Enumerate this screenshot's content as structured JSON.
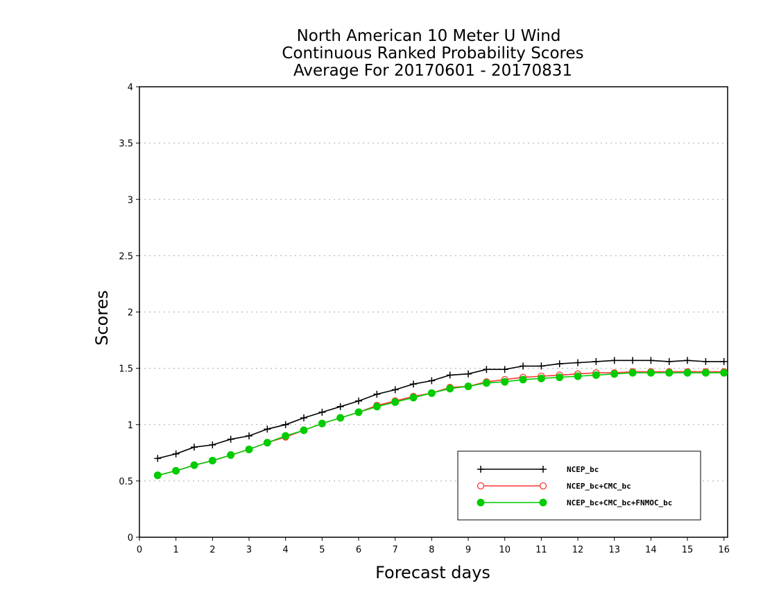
{
  "chart_data": {
    "type": "line",
    "title": [
      "North American 10 Meter U Wind",
      "Continuous Ranked Probability Scores",
      "Average For 20170601 - 20170831"
    ],
    "xlabel": "Forecast days",
    "ylabel": "Scores",
    "xlim": [
      0,
      16.1
    ],
    "ylim": [
      0,
      4
    ],
    "x_ticks": [
      0,
      1,
      2,
      3,
      4,
      5,
      6,
      7,
      8,
      9,
      10,
      11,
      12,
      13,
      14,
      15,
      16
    ],
    "x_tick_labels": [
      "0",
      "1",
      "2",
      "3",
      "4",
      "5",
      "6",
      "7",
      "8",
      "9",
      "10",
      "11",
      "12",
      "13",
      "14",
      "15",
      "16"
    ],
    "y_ticks": [
      0,
      0.5,
      1,
      1.5,
      2,
      2.5,
      3,
      3.5,
      4
    ],
    "y_tick_labels": [
      "0",
      "0.5",
      "1",
      "1.5",
      "2",
      "2.5",
      "3",
      "3.5",
      "4"
    ],
    "grid": "horizontal dotted",
    "legend_position": "bottom-right",
    "x": [
      0.5,
      1,
      1.5,
      2,
      2.5,
      3,
      3.5,
      4,
      4.5,
      5,
      5.5,
      6,
      6.5,
      7,
      7.5,
      8,
      8.5,
      9,
      9.5,
      10,
      10.5,
      11,
      11.5,
      12,
      12.5,
      13,
      13.5,
      14,
      14.5,
      15,
      15.5,
      16
    ],
    "series": [
      {
        "name": "NCEP_bc",
        "color": "#000000",
        "marker": "plus",
        "values": [
          0.7,
          0.74,
          0.8,
          0.82,
          0.87,
          0.9,
          0.96,
          1.0,
          1.06,
          1.11,
          1.16,
          1.21,
          1.27,
          1.31,
          1.36,
          1.39,
          1.44,
          1.45,
          1.49,
          1.49,
          1.52,
          1.52,
          1.54,
          1.55,
          1.56,
          1.57,
          1.57,
          1.57,
          1.56,
          1.57,
          1.56,
          1.56
        ]
      },
      {
        "name": "NCEP_bc+CMC_bc",
        "color": "#ff3333",
        "marker": "open-circle",
        "values": [
          0.55,
          0.59,
          0.64,
          0.68,
          0.73,
          0.78,
          0.84,
          0.89,
          0.95,
          1.01,
          1.06,
          1.11,
          1.17,
          1.21,
          1.25,
          1.28,
          1.33,
          1.34,
          1.38,
          1.4,
          1.42,
          1.43,
          1.44,
          1.45,
          1.46,
          1.46,
          1.47,
          1.47,
          1.47,
          1.47,
          1.47,
          1.47
        ]
      },
      {
        "name": "NCEP_bc+CMC_bc+FNMOC_bc",
        "color": "#00cc00",
        "marker": "filled-circle",
        "values": [
          0.55,
          0.59,
          0.64,
          0.68,
          0.73,
          0.78,
          0.84,
          0.9,
          0.95,
          1.01,
          1.06,
          1.11,
          1.16,
          1.2,
          1.24,
          1.28,
          1.32,
          1.34,
          1.37,
          1.38,
          1.4,
          1.41,
          1.42,
          1.43,
          1.44,
          1.45,
          1.46,
          1.46,
          1.46,
          1.46,
          1.46,
          1.46
        ]
      }
    ]
  }
}
